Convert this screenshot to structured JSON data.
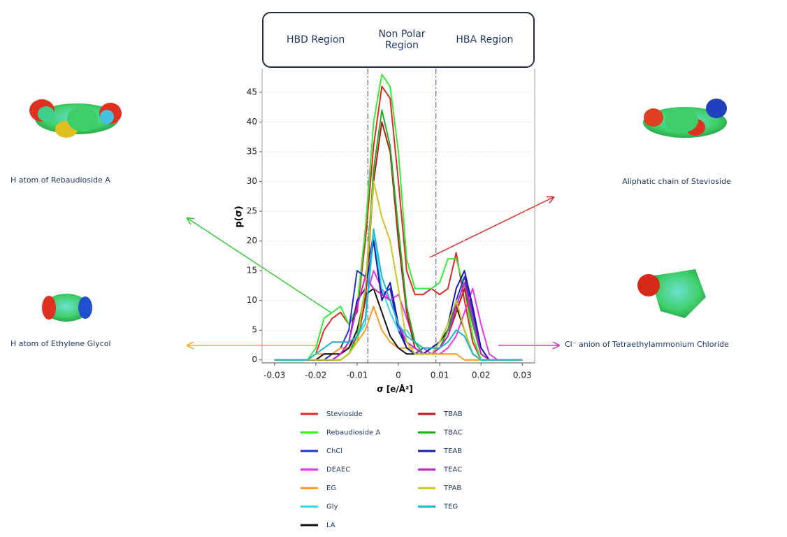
{
  "chart_data": {
    "type": "line",
    "x_label": "σ [e/Å²]",
    "y_label": "p(σ)",
    "regions": [
      "HBD Region",
      "Non Polar Region",
      "HBA Region"
    ],
    "region_bounds": [
      -0.0074,
      0.0091
    ],
    "annotations": [
      "H atom of Rebaudioside A",
      "H atom of Ethylene Glycol",
      "Aliphatic chain of Stevioside",
      "Cl⁻ anion of Tetraethylammonium Chloride"
    ],
    "xlim": [
      -0.033,
      0.033
    ],
    "ylim": [
      -0.5,
      49
    ],
    "xticks": [
      -0.03,
      -0.02,
      -0.01,
      0,
      0.01,
      0.02,
      0.03
    ],
    "yticks": [
      0,
      5,
      10,
      15,
      20,
      25,
      30,
      35,
      40,
      45
    ],
    "grid": true,
    "x": [
      -0.03,
      -0.028,
      -0.026,
      -0.024,
      -0.022,
      -0.02,
      -0.018,
      -0.016,
      -0.014,
      -0.012,
      -0.01,
      -0.008,
      -0.006,
      -0.004,
      -0.002,
      0,
      0.002,
      0.004,
      0.006,
      0.008,
      0.01,
      0.012,
      0.014,
      0.016,
      0.018,
      0.02,
      0.022,
      0.024,
      0.026,
      0.028,
      0.03
    ],
    "series": [
      {
        "name": "Stevioside",
        "color": "#e02828",
        "values": [
          0,
          0,
          0,
          0,
          0,
          1,
          5,
          7,
          8,
          6,
          8,
          20,
          36,
          46,
          44,
          30,
          15,
          11,
          11,
          12,
          11,
          12,
          18,
          10,
          3,
          0,
          0,
          0,
          0,
          0,
          0
        ]
      },
      {
        "name": "Rebaudioside A",
        "color": "#33ee33",
        "values": [
          0,
          0,
          0,
          0,
          0,
          2,
          7,
          8,
          9,
          6,
          9,
          22,
          40,
          48,
          46,
          35,
          17,
          12,
          12,
          12,
          13,
          17,
          17,
          12,
          4,
          0,
          0,
          0,
          0,
          0,
          0
        ]
      },
      {
        "name": "ChCl",
        "color": "#2233cc",
        "values": [
          0,
          0,
          0,
          0,
          0,
          0,
          0,
          1,
          2,
          5,
          15,
          14,
          21,
          11,
          12,
          5,
          2,
          1,
          2,
          2,
          3,
          5,
          10,
          14,
          8,
          2,
          0,
          0,
          0,
          0,
          0
        ]
      },
      {
        "name": "DEAEC",
        "color": "#ee33ee",
        "values": [
          0,
          0,
          0,
          0,
          0,
          0,
          0,
          0,
          1,
          2,
          4,
          10,
          15,
          12,
          10,
          11,
          7,
          3,
          2,
          1,
          1,
          2,
          4,
          8,
          12,
          6,
          1,
          0,
          0,
          0,
          0
        ]
      },
      {
        "name": "EG",
        "color": "#ff9922",
        "values": [
          0,
          0,
          0,
          0,
          0,
          1,
          1,
          1,
          2,
          2,
          3,
          5,
          9,
          5,
          3,
          2,
          2,
          2,
          1,
          1,
          1,
          1,
          1,
          0,
          0,
          0,
          0,
          0,
          0,
          0,
          0
        ]
      },
      {
        "name": "Gly",
        "color": "#33ddee",
        "values": [
          0,
          0,
          0,
          0,
          0,
          1,
          2,
          3,
          3,
          3,
          4,
          6,
          21,
          12,
          8,
          5,
          5,
          3,
          2,
          2,
          2,
          3,
          5,
          4,
          1,
          0,
          0,
          0,
          0,
          0,
          0
        ]
      },
      {
        "name": "LA",
        "color": "#111111",
        "values": [
          0,
          0,
          0,
          0,
          0,
          0,
          1,
          1,
          1,
          2,
          5,
          11,
          12,
          8,
          4,
          2,
          1,
          1,
          1,
          2,
          3,
          5,
          9,
          5,
          1,
          0,
          0,
          0,
          0,
          0,
          0
        ]
      },
      {
        "name": "TBAB",
        "color": "#c01818",
        "values": [
          0,
          0,
          0,
          0,
          0,
          0,
          0,
          0,
          0,
          1,
          3,
          10,
          30,
          40,
          35,
          20,
          8,
          2,
          1,
          1,
          2,
          4,
          8,
          12,
          6,
          1,
          0,
          0,
          0,
          0,
          0
        ]
      },
      {
        "name": "TBAC",
        "color": "#22b022",
        "values": [
          0,
          0,
          0,
          0,
          0,
          0,
          0,
          0,
          0,
          1,
          4,
          12,
          32,
          42,
          36,
          22,
          9,
          3,
          1,
          1,
          2,
          5,
          9,
          13,
          6,
          1,
          0,
          0,
          0,
          0,
          0
        ]
      },
      {
        "name": "TEAB",
        "color": "#1a1aaa",
        "values": [
          0,
          0,
          0,
          0,
          0,
          0,
          0,
          0,
          1,
          3,
          10,
          12,
          20,
          10,
          13,
          6,
          2,
          1,
          1,
          2,
          3,
          6,
          12,
          15,
          9,
          2,
          0,
          0,
          0,
          0,
          0
        ]
      },
      {
        "name": "TEAC",
        "color": "#cc22cc",
        "values": [
          0,
          0,
          0,
          0,
          0,
          0,
          0,
          0,
          1,
          3,
          9,
          14,
          12,
          11,
          10,
          6,
          3,
          2,
          1,
          1,
          2,
          4,
          9,
          13,
          7,
          1,
          0,
          0,
          0,
          0,
          0
        ]
      },
      {
        "name": "TPAB",
        "color": "#c8c822",
        "values": [
          0,
          0,
          0,
          0,
          0,
          0,
          0,
          0,
          0,
          1,
          3,
          12,
          30,
          24,
          20,
          12,
          3,
          1,
          1,
          1,
          3,
          6,
          10,
          5,
          1,
          0,
          0,
          0,
          0,
          0,
          0
        ]
      },
      {
        "name": "TEG",
        "color": "#22b8cc",
        "values": [
          0,
          0,
          0,
          0,
          0,
          1,
          2,
          3,
          3,
          3,
          4,
          7,
          22,
          14,
          10,
          6,
          4,
          3,
          2,
          2,
          2,
          3,
          5,
          4,
          1,
          0,
          0,
          0,
          0,
          0,
          0
        ]
      }
    ]
  }
}
